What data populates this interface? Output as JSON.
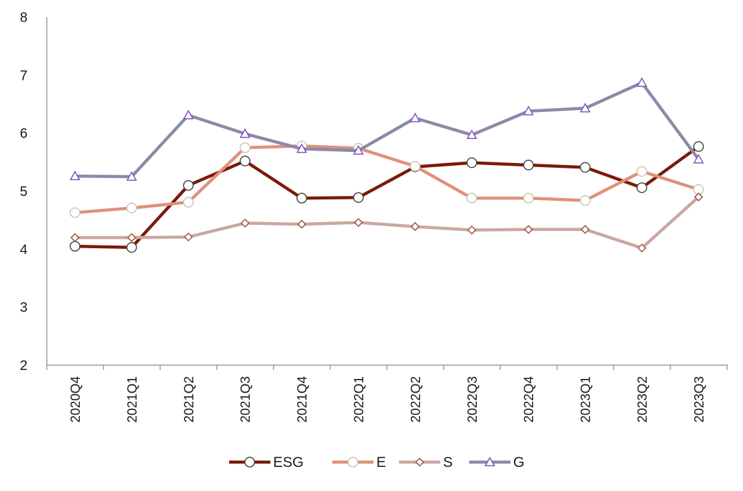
{
  "chart_data": {
    "type": "line",
    "title": "",
    "xlabel": "",
    "ylabel": "",
    "categories": [
      "2020Q4",
      "2021Q1",
      "2021Q2",
      "2021Q3",
      "2021Q4",
      "2022Q1",
      "2022Q2",
      "2022Q3",
      "2022Q4",
      "2023Q1",
      "2023Q2",
      "2023Q3"
    ],
    "ylim": [
      2,
      8
    ],
    "yticks": [
      "2",
      "3",
      "4",
      "5",
      "6",
      "7",
      "8"
    ],
    "grid": false,
    "legend_position": "bottom",
    "series": [
      {
        "name": "ESG",
        "color": "#7a1a08",
        "marker": "circle",
        "marker_fill": "#ffffff",
        "marker_stroke": "#444444",
        "values": [
          4.05,
          4.03,
          5.1,
          5.52,
          4.88,
          4.89,
          5.42,
          5.49,
          5.45,
          5.41,
          5.06,
          5.77
        ]
      },
      {
        "name": "E",
        "color": "#e0907a",
        "marker": "circle",
        "marker_fill": "#ffffff",
        "marker_stroke": "#c8c8b4",
        "values": [
          4.63,
          4.71,
          4.81,
          5.75,
          5.78,
          5.74,
          5.43,
          4.88,
          4.88,
          4.84,
          5.34,
          5.03
        ]
      },
      {
        "name": "S",
        "color": "#c8a8a0",
        "marker": "diamond",
        "marker_fill": "#ffffff",
        "marker_stroke": "#a05040",
        "values": [
          4.2,
          4.2,
          4.21,
          4.45,
          4.43,
          4.46,
          4.39,
          4.33,
          4.34,
          4.34,
          4.02,
          4.9
        ]
      },
      {
        "name": "G",
        "color": "#8a8aa8",
        "marker": "triangle",
        "marker_fill": "#ffffff",
        "marker_stroke": "#8050c0",
        "values": [
          5.26,
          5.25,
          6.31,
          5.99,
          5.73,
          5.7,
          6.26,
          5.97,
          6.38,
          6.43,
          6.87,
          5.55
        ]
      }
    ]
  }
}
